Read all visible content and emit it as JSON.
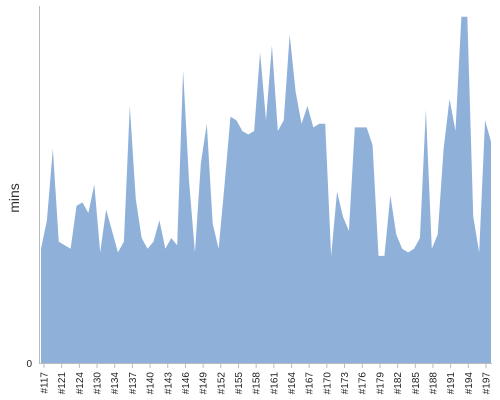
{
  "chart_data": {
    "type": "area",
    "title": "",
    "xlabel": "",
    "ylabel": "mins",
    "color": "#8fb1d9",
    "grid": false,
    "ylim": [
      0,
      100
    ],
    "y_tick_labels": [
      "0"
    ],
    "x_tick_labels": [
      "#117",
      "#121",
      "#124",
      "#130",
      "#134",
      "#137",
      "#140",
      "#143",
      "#146",
      "#149",
      "#152",
      "#155",
      "#158",
      "#161",
      "#164",
      "#167",
      "#170",
      "#173",
      "#176",
      "#179",
      "#182",
      "#185",
      "#188",
      "#191",
      "#194",
      "#197"
    ],
    "values": [
      32,
      40,
      60,
      34,
      33,
      32,
      44,
      45,
      42,
      50,
      31,
      43,
      37,
      31,
      34,
      72,
      46,
      35,
      32,
      34,
      40,
      32,
      35,
      33,
      82,
      51,
      31,
      56,
      67,
      39,
      32,
      50,
      69,
      68,
      65,
      64,
      65,
      87,
      68,
      89,
      65,
      68,
      92,
      76,
      67,
      72,
      66,
      67,
      67,
      30,
      48,
      41,
      37,
      66,
      66,
      66,
      61,
      30,
      30,
      47,
      36,
      32,
      31,
      32,
      35,
      71,
      32,
      36,
      60,
      74,
      65,
      97,
      97,
      41,
      31,
      68,
      62
    ]
  }
}
